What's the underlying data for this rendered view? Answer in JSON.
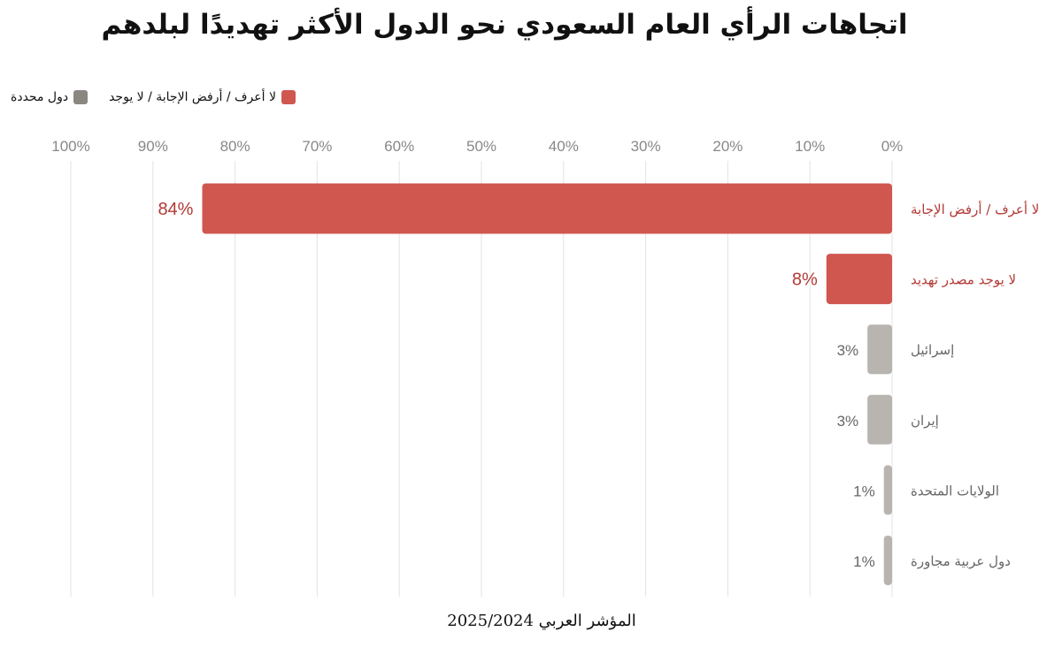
{
  "page": {
    "title": "اتجاهات الرأي العام السعودي نحو الدول الأكثر تهديدًا لبلدهم",
    "footer": "المؤشر العربي 2025/2024"
  },
  "legend": [
    {
      "name": "دول محددة",
      "color": "#8a8780"
    },
    {
      "name": "لا أعرف / أرفض الإجابة / لا يوجد",
      "color": "#d05650"
    }
  ],
  "chart_data": {
    "type": "bar",
    "orientation": "horizontal",
    "x_axis": {
      "range": [
        0,
        100
      ],
      "reversed": true,
      "unit": "%",
      "ticks": [
        100,
        90,
        80,
        70,
        60,
        50,
        40,
        30,
        20,
        10,
        0
      ],
      "tick_labels": [
        "100%",
        "90%",
        "80%",
        "70%",
        "60%",
        "50%",
        "40%",
        "30%",
        "20%",
        "10%",
        "0%"
      ],
      "position": "top"
    },
    "grid": true,
    "legend_position": "top-left",
    "categories": [
      "لا أعرف / أرفض الإجابة",
      "لا يوجد مصدر تهديد",
      "إسرائيل",
      "إيران",
      "الولايات المتحدة",
      "دول عربية مجاورة"
    ],
    "values": [
      84,
      8,
      3,
      3,
      1,
      1
    ],
    "value_labels": [
      "84%",
      "8%",
      "3%",
      "3%",
      "1%",
      "1%"
    ],
    "groups": [
      "لا أعرف / أرفض الإجابة / لا يوجد",
      "لا أعرف / أرفض الإجابة / لا يوجد",
      "دول محددة",
      "دول محددة",
      "دول محددة",
      "دول محددة"
    ],
    "colors": {
      "highlight_bar": "#d05650",
      "highlight_text": "#b23a35",
      "neutral_bar": "#b8b5b0",
      "neutral_text": "#666666",
      "grid": "#e3e3e3",
      "tick_text": "#888888"
    }
  }
}
